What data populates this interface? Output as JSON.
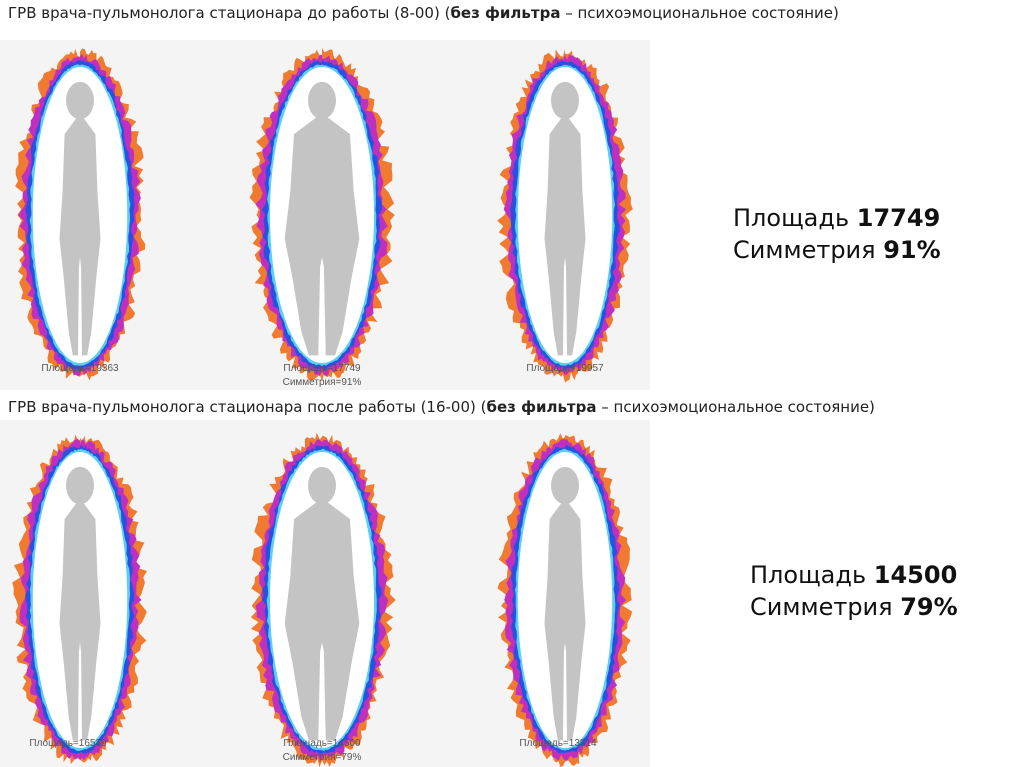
{
  "sections": [
    {
      "title": {
        "before": "ГРВ врача-пульмонолога стационара до работы (8-00) (",
        "bold": "без фильтра",
        "after": " – психоэмоциональное состояние)"
      },
      "captions": [
        "Площадь=19363",
        "Площадь=17749",
        "Симметрия=91%",
        "Площадь=19957"
      ],
      "summary": {
        "area_label": "Площадь",
        "area_value": "17749",
        "symmetry_label": "Симметрия",
        "symmetry_value": "91%"
      }
    },
    {
      "title": {
        "before": "ГРВ врача-пульмонолога стационара после работы (16-00) (",
        "bold": "без фильтра",
        "after": " – психоэмоциональное состояние)"
      },
      "captions": [
        "Площадь=16539",
        "Площадь=14500",
        "Симметрия=79%",
        "Площадь=13514"
      ],
      "summary": {
        "area_label": "Площадь",
        "area_value": "14500",
        "symmetry_label": "Симметрия",
        "symmetry_value": "79%"
      }
    }
  ]
}
